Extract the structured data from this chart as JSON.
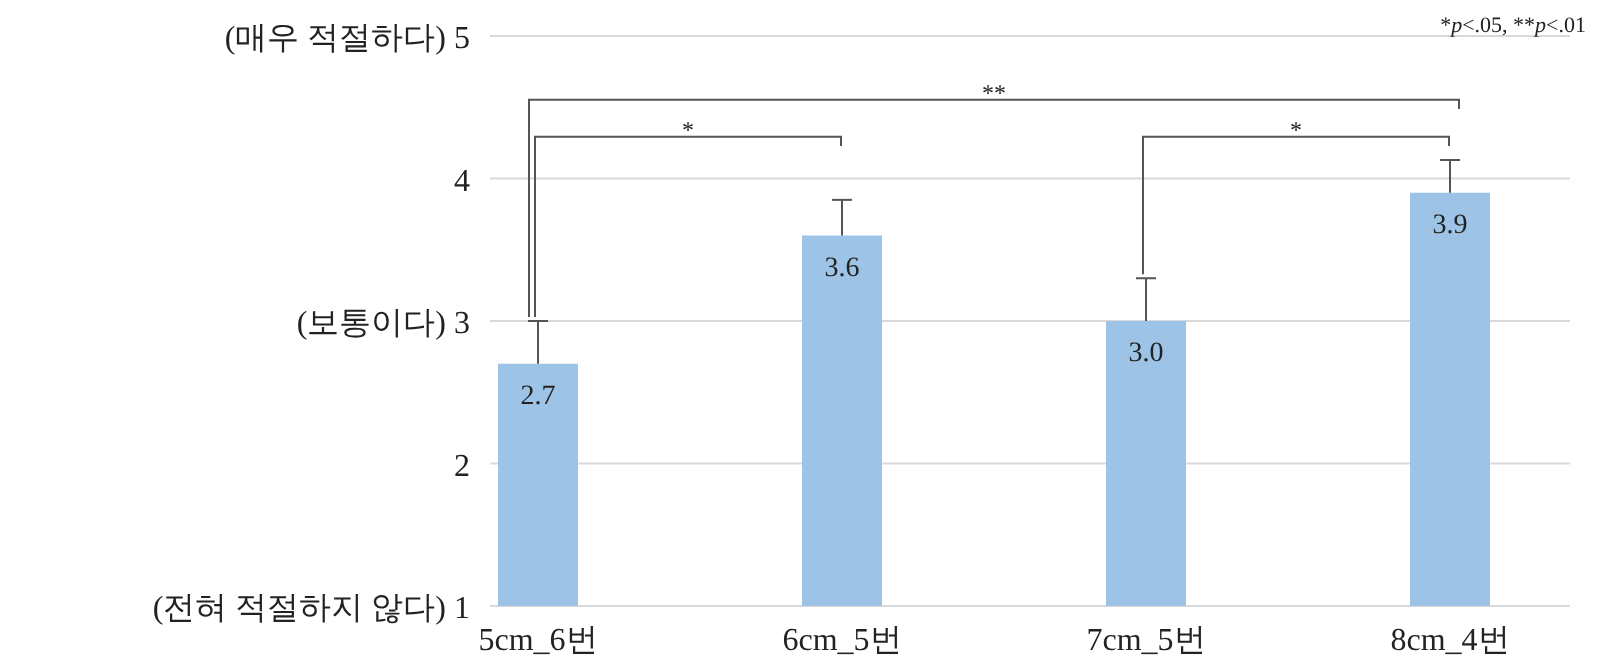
{
  "chart_data": {
    "type": "bar",
    "categories": [
      "5cm_6번",
      "6cm_5번",
      "7cm_5번",
      "8cm_4번"
    ],
    "values": [
      2.7,
      3.6,
      3.0,
      3.9
    ],
    "color": "#9dc3e6",
    "errors": [
      [
        2.7,
        3.0
      ],
      [
        3.6,
        3.85
      ],
      [
        3.0,
        3.3
      ],
      [
        3.9,
        4.13
      ]
    ],
    "value_labels": [
      "2.7",
      "3.6",
      "3.0",
      "3.9"
    ],
    "ylim": [
      1,
      5
    ],
    "yticks": [
      {
        "value": 1,
        "label": "(전혀 적절하지 않다) 1"
      },
      2,
      {
        "value": 3,
        "label": "(보통이다) 3"
      },
      4,
      {
        "value": 5,
        "label": "(매우 적절하다) 5"
      }
    ],
    "grid": "y",
    "annotations": [
      "*p<.05, **p<.01",
      "*",
      "**",
      "*"
    ]
  }
}
